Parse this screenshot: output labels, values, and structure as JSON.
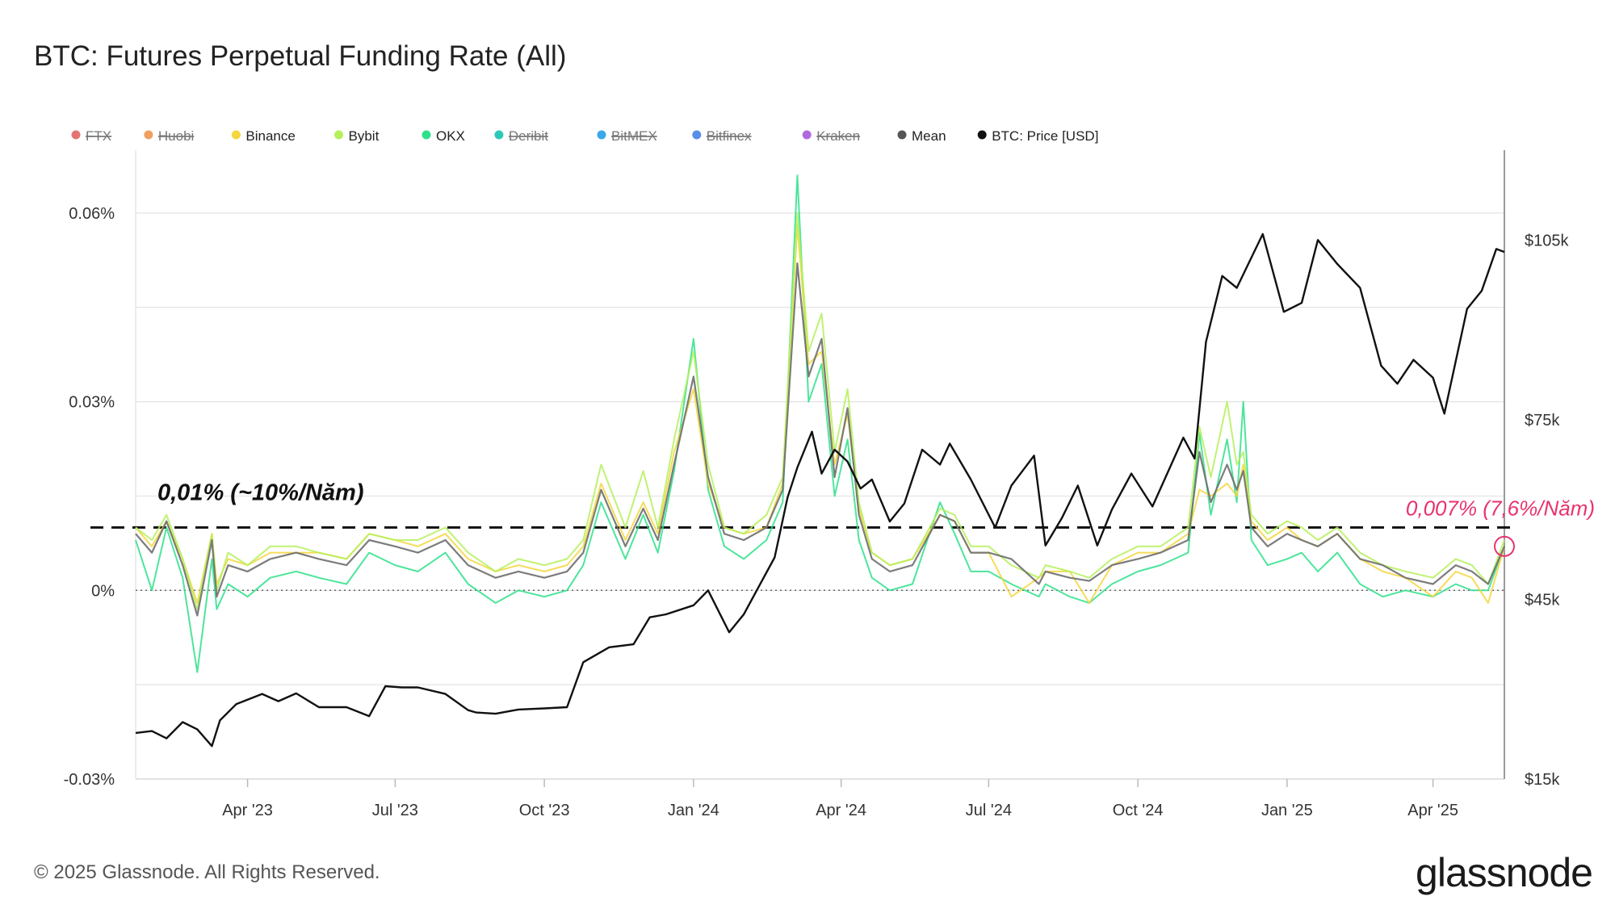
{
  "title": "BTC: Futures Perpetual Funding Rate (All)",
  "footer": "© 2025 Glassnode. All Rights Reserved.",
  "brand": "glassnode",
  "chart_data": {
    "type": "line",
    "title": "BTC: Futures Perpetual Funding Rate (All)",
    "legend": [
      {
        "name": "FTX",
        "color": "#e57373",
        "disabled": true
      },
      {
        "name": "Huobi",
        "color": "#f0a060",
        "disabled": true
      },
      {
        "name": "Binance",
        "color": "#f5d63d",
        "disabled": false
      },
      {
        "name": "Bybit",
        "color": "#b5f05a",
        "disabled": false
      },
      {
        "name": "OKX",
        "color": "#2ee08a",
        "disabled": false
      },
      {
        "name": "Deribit",
        "color": "#2ec8b8",
        "disabled": true
      },
      {
        "name": "BitMEX",
        "color": "#3aa8e8",
        "disabled": true
      },
      {
        "name": "Bitfinex",
        "color": "#5a8ee8",
        "disabled": true
      },
      {
        "name": "Kraken",
        "color": "#b06ae0",
        "disabled": true
      },
      {
        "name": "Mean",
        "color": "#555555",
        "disabled": false
      },
      {
        "name": "BTC: Price [USD]",
        "color": "#111111",
        "disabled": false
      }
    ],
    "legend_placement": "top",
    "x_ticks": [
      "Apr '23",
      "Jul '23",
      "Oct '23",
      "Jan '24",
      "Apr '24",
      "Jul '24",
      "Oct '24",
      "Jan '25",
      "Apr '25"
    ],
    "x_tick_dates": [
      "2023-04-01",
      "2023-07-01",
      "2023-10-01",
      "2024-01-01",
      "2024-04-01",
      "2024-07-01",
      "2024-10-01",
      "2025-01-01",
      "2025-04-01"
    ],
    "x_range": [
      "2023-01-22",
      "2025-05-15"
    ],
    "y_left": {
      "ticks": [
        "0.06%",
        "0.03%",
        "0%",
        "-0.03%"
      ],
      "tick_values": [
        0.06,
        0.03,
        0,
        -0.03
      ],
      "range": [
        -0.03,
        0.07
      ],
      "unit": "%"
    },
    "y_right": {
      "ticks": [
        "$105k",
        "$75k",
        "$45k",
        "$15k"
      ],
      "tick_values": [
        105000,
        75000,
        45000,
        15000
      ],
      "range": [
        15000,
        120000
      ]
    },
    "grid": true,
    "series": [
      {
        "name": "Mean",
        "color": "#6e6e6e",
        "dates": [
          "2023-01-22",
          "2023-02-01",
          "2023-02-10",
          "2023-02-20",
          "2023-03-01",
          "2023-03-10",
          "2023-03-13",
          "2023-03-20",
          "2023-04-01",
          "2023-04-15",
          "2023-05-01",
          "2023-05-15",
          "2023-06-01",
          "2023-06-15",
          "2023-07-01",
          "2023-07-15",
          "2023-08-01",
          "2023-08-15",
          "2023-09-01",
          "2023-09-15",
          "2023-10-01",
          "2023-10-15",
          "2023-10-25",
          "2023-11-05",
          "2023-11-20",
          "2023-12-01",
          "2023-12-10",
          "2023-12-20",
          "2024-01-01",
          "2024-01-10",
          "2024-01-20",
          "2024-02-01",
          "2024-02-15",
          "2024-02-25",
          "2024-03-05",
          "2024-03-12",
          "2024-03-20",
          "2024-03-28",
          "2024-04-05",
          "2024-04-12",
          "2024-04-20",
          "2024-05-01",
          "2024-05-15",
          "2024-06-01",
          "2024-06-10",
          "2024-06-20",
          "2024-07-01",
          "2024-07-15",
          "2024-08-01",
          "2024-08-05",
          "2024-08-20",
          "2024-09-01",
          "2024-09-15",
          "2024-10-01",
          "2024-10-15",
          "2024-11-01",
          "2024-11-08",
          "2024-11-15",
          "2024-11-25",
          "2024-12-01",
          "2024-12-05",
          "2024-12-10",
          "2024-12-20",
          "2025-01-01",
          "2025-01-10",
          "2025-01-20",
          "2025-02-01",
          "2025-02-15",
          "2025-03-01",
          "2025-03-15",
          "2025-04-01",
          "2025-04-15",
          "2025-04-25",
          "2025-05-05",
          "2025-05-15"
        ],
        "values": [
          0.009,
          0.006,
          0.011,
          0.004,
          -0.004,
          0.008,
          -0.001,
          0.004,
          0.003,
          0.005,
          0.006,
          0.005,
          0.004,
          0.008,
          0.007,
          0.006,
          0.008,
          0.004,
          0.002,
          0.003,
          0.002,
          0.003,
          0.006,
          0.016,
          0.007,
          0.013,
          0.008,
          0.02,
          0.034,
          0.018,
          0.009,
          0.008,
          0.01,
          0.016,
          0.052,
          0.034,
          0.04,
          0.018,
          0.029,
          0.012,
          0.005,
          0.003,
          0.004,
          0.012,
          0.011,
          0.006,
          0.006,
          0.005,
          0.001,
          0.003,
          0.002,
          0.0015,
          0.004,
          0.005,
          0.006,
          0.008,
          0.022,
          0.014,
          0.02,
          0.016,
          0.019,
          0.01,
          0.007,
          0.009,
          0.008,
          0.007,
          0.009,
          0.005,
          0.004,
          0.002,
          0.001,
          0.004,
          0.003,
          0.001,
          0.007
        ]
      },
      {
        "name": "Binance",
        "color": "#f5d63d",
        "dates": [
          "2023-01-22",
          "2023-02-01",
          "2023-02-10",
          "2023-02-20",
          "2023-03-01",
          "2023-03-10",
          "2023-03-13",
          "2023-03-20",
          "2023-04-01",
          "2023-04-15",
          "2023-05-01",
          "2023-05-15",
          "2023-06-01",
          "2023-06-15",
          "2023-07-01",
          "2023-07-15",
          "2023-08-01",
          "2023-08-15",
          "2023-09-01",
          "2023-09-15",
          "2023-10-01",
          "2023-10-15",
          "2023-10-25",
          "2023-11-05",
          "2023-11-20",
          "2023-12-01",
          "2023-12-10",
          "2023-12-20",
          "2024-01-01",
          "2024-01-10",
          "2024-01-20",
          "2024-02-01",
          "2024-02-15",
          "2024-02-25",
          "2024-03-05",
          "2024-03-12",
          "2024-03-20",
          "2024-03-28",
          "2024-04-05",
          "2024-04-12",
          "2024-04-20",
          "2024-05-01",
          "2024-05-15",
          "2024-06-01",
          "2024-06-10",
          "2024-06-20",
          "2024-07-01",
          "2024-07-15",
          "2024-08-01",
          "2024-08-05",
          "2024-08-20",
          "2024-09-01",
          "2024-09-15",
          "2024-10-01",
          "2024-10-15",
          "2024-11-01",
          "2024-11-08",
          "2024-11-15",
          "2024-11-25",
          "2024-12-01",
          "2024-12-05",
          "2024-12-10",
          "2024-12-20",
          "2025-01-01",
          "2025-01-10",
          "2025-01-20",
          "2025-02-01",
          "2025-02-15",
          "2025-03-01",
          "2025-03-15",
          "2025-04-01",
          "2025-04-15",
          "2025-04-25",
          "2025-05-05",
          "2025-05-15"
        ],
        "values": [
          0.01,
          0.007,
          0.011,
          0.005,
          -0.002,
          0.009,
          0.001,
          0.005,
          0.004,
          0.006,
          0.006,
          0.006,
          0.005,
          0.009,
          0.008,
          0.007,
          0.009,
          0.005,
          0.003,
          0.004,
          0.003,
          0.004,
          0.007,
          0.017,
          0.008,
          0.014,
          0.009,
          0.022,
          0.032,
          0.017,
          0.01,
          0.009,
          0.01,
          0.017,
          0.058,
          0.036,
          0.038,
          0.02,
          0.028,
          0.013,
          0.006,
          0.004,
          0.005,
          0.012,
          0.011,
          0.006,
          0.006,
          -0.001,
          0.002,
          0.003,
          0.003,
          -0.002,
          0.004,
          0.006,
          0.006,
          0.009,
          0.016,
          0.015,
          0.017,
          0.015,
          0.02,
          0.011,
          0.008,
          0.01,
          0.008,
          0.007,
          0.009,
          0.005,
          0.003,
          0.002,
          -0.001,
          0.003,
          0.002,
          -0.002,
          0.007
        ]
      },
      {
        "name": "Bybit",
        "color": "#b5f05a",
        "dates": [
          "2023-01-22",
          "2023-02-01",
          "2023-02-10",
          "2023-02-20",
          "2023-03-01",
          "2023-03-10",
          "2023-03-13",
          "2023-03-20",
          "2023-04-01",
          "2023-04-15",
          "2023-05-01",
          "2023-05-15",
          "2023-06-01",
          "2023-06-15",
          "2023-07-01",
          "2023-07-15",
          "2023-08-01",
          "2023-08-15",
          "2023-09-01",
          "2023-09-15",
          "2023-10-01",
          "2023-10-15",
          "2023-10-25",
          "2023-11-05",
          "2023-11-20",
          "2023-12-01",
          "2023-12-10",
          "2023-12-20",
          "2024-01-01",
          "2024-01-10",
          "2024-01-20",
          "2024-02-01",
          "2024-02-15",
          "2024-02-25",
          "2024-03-05",
          "2024-03-12",
          "2024-03-20",
          "2024-03-28",
          "2024-04-05",
          "2024-04-12",
          "2024-04-20",
          "2024-05-01",
          "2024-05-15",
          "2024-06-01",
          "2024-06-10",
          "2024-06-20",
          "2024-07-01",
          "2024-07-15",
          "2024-08-01",
          "2024-08-05",
          "2024-08-20",
          "2024-09-01",
          "2024-09-15",
          "2024-10-01",
          "2024-10-15",
          "2024-11-01",
          "2024-11-08",
          "2024-11-15",
          "2024-11-25",
          "2024-12-01",
          "2024-12-05",
          "2024-12-10",
          "2024-12-20",
          "2025-01-01",
          "2025-01-10",
          "2025-01-20",
          "2025-02-01",
          "2025-02-15",
          "2025-03-01",
          "2025-03-15",
          "2025-04-01",
          "2025-04-15",
          "2025-04-25",
          "2025-05-05",
          "2025-05-15"
        ],
        "values": [
          0.01,
          0.008,
          0.012,
          0.005,
          -0.003,
          0.009,
          0.0,
          0.006,
          0.004,
          0.007,
          0.007,
          0.006,
          0.005,
          0.009,
          0.008,
          0.008,
          0.01,
          0.006,
          0.003,
          0.005,
          0.004,
          0.005,
          0.008,
          0.02,
          0.01,
          0.019,
          0.01,
          0.024,
          0.038,
          0.02,
          0.01,
          0.009,
          0.012,
          0.018,
          0.06,
          0.038,
          0.044,
          0.022,
          0.032,
          0.014,
          0.006,
          0.004,
          0.005,
          0.013,
          0.012,
          0.007,
          0.007,
          0.004,
          0.002,
          0.004,
          0.003,
          0.002,
          0.005,
          0.007,
          0.007,
          0.01,
          0.026,
          0.018,
          0.03,
          0.02,
          0.022,
          0.012,
          0.009,
          0.011,
          0.01,
          0.008,
          0.01,
          0.006,
          0.004,
          0.003,
          0.002,
          0.005,
          0.004,
          0.001,
          0.008
        ]
      },
      {
        "name": "OKX",
        "color": "#2ee08a",
        "dates": [
          "2023-01-22",
          "2023-02-01",
          "2023-02-10",
          "2023-02-20",
          "2023-03-01",
          "2023-03-10",
          "2023-03-13",
          "2023-03-20",
          "2023-04-01",
          "2023-04-15",
          "2023-05-01",
          "2023-05-15",
          "2023-06-01",
          "2023-06-15",
          "2023-07-01",
          "2023-07-15",
          "2023-08-01",
          "2023-08-15",
          "2023-09-01",
          "2023-09-15",
          "2023-10-01",
          "2023-10-15",
          "2023-10-25",
          "2023-11-05",
          "2023-11-20",
          "2023-12-01",
          "2023-12-10",
          "2023-12-20",
          "2024-01-01",
          "2024-01-10",
          "2024-01-20",
          "2024-02-01",
          "2024-02-15",
          "2024-02-25",
          "2024-03-05",
          "2024-03-12",
          "2024-03-20",
          "2024-03-28",
          "2024-04-05",
          "2024-04-12",
          "2024-04-20",
          "2024-05-01",
          "2024-05-15",
          "2024-06-01",
          "2024-06-10",
          "2024-06-20",
          "2024-07-01",
          "2024-07-15",
          "2024-08-01",
          "2024-08-05",
          "2024-08-20",
          "2024-09-01",
          "2024-09-15",
          "2024-10-01",
          "2024-10-15",
          "2024-11-01",
          "2024-11-08",
          "2024-11-15",
          "2024-11-25",
          "2024-12-01",
          "2024-12-05",
          "2024-12-10",
          "2024-12-20",
          "2025-01-01",
          "2025-01-10",
          "2025-01-20",
          "2025-02-01",
          "2025-02-15",
          "2025-03-01",
          "2025-03-15",
          "2025-04-01",
          "2025-04-15",
          "2025-04-25",
          "2025-05-05",
          "2025-05-15"
        ],
        "values": [
          0.008,
          0.0,
          0.01,
          0.002,
          -0.013,
          0.005,
          -0.003,
          0.001,
          -0.001,
          0.002,
          0.003,
          0.002,
          0.001,
          0.006,
          0.004,
          0.003,
          0.006,
          0.001,
          -0.002,
          0.0,
          -0.001,
          0.0,
          0.004,
          0.014,
          0.005,
          0.012,
          0.006,
          0.019,
          0.04,
          0.016,
          0.007,
          0.005,
          0.008,
          0.014,
          0.066,
          0.03,
          0.036,
          0.015,
          0.024,
          0.008,
          0.002,
          0.0,
          0.001,
          0.014,
          0.009,
          0.003,
          0.003,
          0.001,
          -0.001,
          0.001,
          -0.001,
          -0.002,
          0.001,
          0.003,
          0.004,
          0.006,
          0.025,
          0.012,
          0.024,
          0.014,
          0.03,
          0.008,
          0.004,
          0.005,
          0.006,
          0.003,
          0.006,
          0.001,
          -0.001,
          0.0,
          -0.001,
          0.001,
          0.0,
          0.0,
          0.007
        ]
      },
      {
        "name": "BTC: Price [USD]",
        "color": "#111111",
        "axis": "right",
        "dates": [
          "2023-01-22",
          "2023-02-01",
          "2023-02-10",
          "2023-02-20",
          "2023-03-01",
          "2023-03-10",
          "2023-03-15",
          "2023-03-25",
          "2023-04-10",
          "2023-04-20",
          "2023-05-01",
          "2023-05-15",
          "2023-06-01",
          "2023-06-15",
          "2023-06-25",
          "2023-07-05",
          "2023-07-15",
          "2023-08-01",
          "2023-08-15",
          "2023-08-20",
          "2023-09-01",
          "2023-09-15",
          "2023-10-01",
          "2023-10-15",
          "2023-10-25",
          "2023-11-10",
          "2023-11-25",
          "2023-12-05",
          "2023-12-15",
          "2024-01-01",
          "2024-01-10",
          "2024-01-23",
          "2024-02-01",
          "2024-02-10",
          "2024-02-20",
          "2024-02-28",
          "2024-03-05",
          "2024-03-14",
          "2024-03-20",
          "2024-03-28",
          "2024-04-05",
          "2024-04-13",
          "2024-04-20",
          "2024-05-01",
          "2024-05-10",
          "2024-05-21",
          "2024-06-01",
          "2024-06-07",
          "2024-06-20",
          "2024-07-05",
          "2024-07-15",
          "2024-07-29",
          "2024-08-05",
          "2024-08-15",
          "2024-08-25",
          "2024-09-06",
          "2024-09-15",
          "2024-09-27",
          "2024-10-10",
          "2024-10-29",
          "2024-11-05",
          "2024-11-12",
          "2024-11-22",
          "2024-12-01",
          "2024-12-17",
          "2024-12-30",
          "2025-01-10",
          "2025-01-20",
          "2025-02-01",
          "2025-02-15",
          "2025-02-28",
          "2025-03-10",
          "2025-03-20",
          "2025-04-01",
          "2025-04-08",
          "2025-04-22",
          "2025-05-01",
          "2025-05-10",
          "2025-05-15"
        ],
        "values": [
          22700,
          23000,
          21800,
          24500,
          23300,
          20500,
          24800,
          27500,
          29200,
          28000,
          29300,
          27000,
          27000,
          25500,
          30500,
          30300,
          30300,
          29200,
          26500,
          26100,
          25900,
          26600,
          26800,
          27000,
          34500,
          37000,
          37500,
          42000,
          42500,
          44000,
          46500,
          39500,
          42500,
          47000,
          52000,
          62000,
          67000,
          73000,
          66000,
          70000,
          68000,
          63500,
          65000,
          58000,
          61000,
          70000,
          67500,
          71000,
          65000,
          57000,
          64000,
          69000,
          54000,
          58500,
          64000,
          54000,
          60000,
          66000,
          60500,
          72000,
          68500,
          88000,
          99000,
          97000,
          106000,
          93000,
          94500,
          105000,
          101000,
          97000,
          84000,
          81000,
          85000,
          82000,
          76000,
          93500,
          96500,
          103500,
          103000
        ]
      }
    ],
    "reference_lines": [
      {
        "value": 0.01,
        "label": "0,01% (~10%/Năm)",
        "style": "dashed"
      },
      {
        "value": 0.0,
        "label": "",
        "style": "dotted"
      }
    ],
    "annotations": [
      {
        "text": "0,007% (7,6%/Năm)",
        "color": "#e8336d",
        "date": "2025-05-14",
        "value": 0.007
      }
    ]
  }
}
